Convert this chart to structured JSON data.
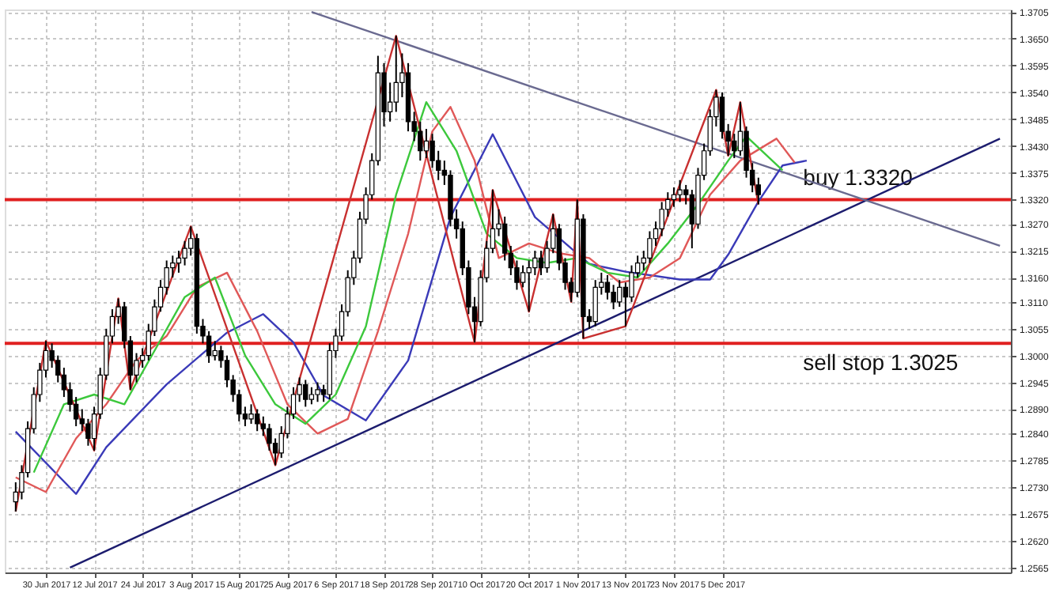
{
  "chart_data": {
    "type": "candlestick",
    "categories": [
      null,
      null,
      null,
      null,
      null,
      "30 Jun 2017",
      null,
      null,
      null,
      null,
      null,
      null,
      null,
      "12 Jul 2017",
      null,
      null,
      null,
      null,
      null,
      null,
      null,
      "24 Jul 2017",
      null,
      null,
      null,
      null,
      null,
      null,
      null,
      "3 Aug 2017",
      null,
      null,
      null,
      null,
      null,
      null,
      null,
      "15 Aug 2017",
      null,
      null,
      null,
      null,
      null,
      null,
      null,
      "25 Aug 2017",
      null,
      null,
      null,
      null,
      null,
      null,
      null,
      "6 Sep 2017",
      null,
      null,
      null,
      null,
      null,
      null,
      null,
      "18 Sep 2017",
      null,
      null,
      null,
      null,
      null,
      null,
      null,
      "28 Sep 2017",
      null,
      null,
      null,
      null,
      null,
      null,
      null,
      "10 Oct 2017",
      null,
      null,
      null,
      null,
      null,
      null,
      null,
      "20 Oct 2017",
      null,
      null,
      null,
      null,
      null,
      null,
      null,
      "1 Nov 2017",
      null,
      null,
      null,
      null,
      null,
      null,
      null,
      "13 Nov 2017",
      null,
      null,
      null,
      null,
      null,
      null,
      null,
      "23 Nov 2017",
      null,
      null,
      null,
      null,
      null,
      null,
      null,
      "5 Dec 2017",
      null,
      null,
      null,
      null,
      null,
      null,
      null,
      null,
      null,
      null,
      null,
      null,
      null,
      null,
      null,
      null,
      null,
      null,
      null,
      null,
      null,
      null,
      null,
      null,
      null,
      null,
      null,
      null,
      null,
      null,
      null,
      null,
      null,
      null,
      null,
      null,
      null,
      null,
      null,
      null,
      null,
      null,
      null,
      null,
      null,
      null
    ],
    "ohlc": [
      [
        1.27,
        1.274,
        1.268,
        1.272
      ],
      [
        1.272,
        1.2775,
        1.2705,
        1.276
      ],
      [
        1.276,
        1.2865,
        1.275,
        1.285
      ],
      [
        1.285,
        1.2935,
        1.284,
        1.292
      ],
      [
        1.292,
        1.2985,
        1.2905,
        1.297
      ],
      [
        1.297,
        1.303,
        1.2955,
        1.301
      ],
      [
        1.301,
        1.3025,
        1.2975,
        1.299
      ],
      [
        1.299,
        1.3,
        1.2945,
        1.296
      ],
      [
        1.296,
        1.2975,
        1.2915,
        1.293
      ],
      [
        1.293,
        1.2945,
        1.2885,
        1.29
      ],
      [
        1.29,
        1.2915,
        1.2855,
        1.287
      ],
      [
        1.287,
        1.289,
        1.2845,
        1.286
      ],
      [
        1.286,
        1.287,
        1.2815,
        1.283
      ],
      [
        1.283,
        1.2895,
        1.2805,
        1.288
      ],
      [
        1.288,
        1.2975,
        1.287,
        1.296
      ],
      [
        1.296,
        1.3055,
        1.295,
        1.304
      ],
      [
        1.304,
        1.3095,
        1.3025,
        1.308
      ],
      [
        1.308,
        1.3117,
        1.3065,
        1.31
      ],
      [
        1.31,
        1.311,
        1.3015,
        1.303
      ],
      [
        1.303,
        1.304,
        1.293,
        1.296
      ],
      [
        1.296,
        1.3005,
        1.2945,
        1.299
      ],
      [
        1.299,
        1.3015,
        1.2975,
        1.3
      ],
      [
        1.3,
        1.3065,
        1.299,
        1.305
      ],
      [
        1.305,
        1.3115,
        1.304,
        1.31
      ],
      [
        1.31,
        1.3155,
        1.309,
        1.314
      ],
      [
        1.314,
        1.3195,
        1.3125,
        1.318
      ],
      [
        1.318,
        1.3205,
        1.316,
        1.319
      ],
      [
        1.319,
        1.3215,
        1.317,
        1.32
      ],
      [
        1.32,
        1.3235,
        1.3185,
        1.322
      ],
      [
        1.322,
        1.3265,
        1.3205,
        1.324
      ],
      [
        1.324,
        1.325,
        1.3045,
        1.306
      ],
      [
        1.306,
        1.3075,
        1.3025,
        1.304
      ],
      [
        1.304,
        1.305,
        1.2985,
        1.3
      ],
      [
        1.3,
        1.303,
        1.299,
        1.301
      ],
      [
        1.301,
        1.302,
        1.2975,
        1.299
      ],
      [
        1.299,
        1.3,
        1.2935,
        1.295
      ],
      [
        1.295,
        1.296,
        1.2905,
        1.292
      ],
      [
        1.292,
        1.293,
        1.2865,
        1.288
      ],
      [
        1.288,
        1.2895,
        1.2855,
        1.287
      ],
      [
        1.287,
        1.29,
        1.286,
        1.288
      ],
      [
        1.288,
        1.289,
        1.2845,
        1.286
      ],
      [
        1.286,
        1.2875,
        1.2835,
        1.285
      ],
      [
        1.285,
        1.286,
        1.2805,
        1.282
      ],
      [
        1.282,
        1.283,
        1.2775,
        1.28
      ],
      [
        1.28,
        1.2855,
        1.279,
        1.284
      ],
      [
        1.284,
        1.2895,
        1.283,
        1.288
      ],
      [
        1.288,
        1.2935,
        1.287,
        1.292
      ],
      [
        1.292,
        1.2955,
        1.2905,
        1.294
      ],
      [
        1.294,
        1.295,
        1.2895,
        1.291
      ],
      [
        1.291,
        1.2935,
        1.29,
        1.292
      ],
      [
        1.292,
        1.2945,
        1.2905,
        1.293
      ],
      [
        1.293,
        1.294,
        1.2905,
        1.292
      ],
      [
        1.292,
        1.3025,
        1.291,
        1.301
      ],
      [
        1.301,
        1.3055,
        1.2995,
        1.304
      ],
      [
        1.304,
        1.3105,
        1.303,
        1.309
      ],
      [
        1.309,
        1.3175,
        1.308,
        1.316
      ],
      [
        1.316,
        1.3215,
        1.3145,
        1.32
      ],
      [
        1.32,
        1.3295,
        1.319,
        1.328
      ],
      [
        1.328,
        1.3345,
        1.327,
        1.333
      ],
      [
        1.333,
        1.3415,
        1.332,
        1.34
      ],
      [
        1.34,
        1.3615,
        1.339,
        1.358
      ],
      [
        1.358,
        1.36,
        1.347,
        1.35
      ],
      [
        1.35,
        1.356,
        1.348,
        1.352
      ],
      [
        1.352,
        1.3656,
        1.35,
        1.356
      ],
      [
        1.356,
        1.362,
        1.353,
        1.358
      ],
      [
        1.358,
        1.36,
        1.346,
        1.348
      ],
      [
        1.348,
        1.35,
        1.344,
        1.346
      ],
      [
        1.346,
        1.348,
        1.34,
        1.342
      ],
      [
        1.342,
        1.3465,
        1.3405,
        1.344
      ],
      [
        1.344,
        1.3455,
        1.3385,
        1.34
      ],
      [
        1.34,
        1.342,
        1.336,
        1.338
      ],
      [
        1.338,
        1.34,
        1.335,
        1.337
      ],
      [
        1.337,
        1.338,
        1.3265,
        1.328
      ],
      [
        1.328,
        1.33,
        1.324,
        1.326
      ],
      [
        1.326,
        1.3275,
        1.3165,
        1.318
      ],
      [
        1.318,
        1.3195,
        1.3085,
        1.31
      ],
      [
        1.31,
        1.312,
        1.3027,
        1.307
      ],
      [
        1.307,
        1.3175,
        1.306,
        1.316
      ],
      [
        1.316,
        1.3235,
        1.315,
        1.322
      ],
      [
        1.322,
        1.334,
        1.321,
        1.326
      ],
      [
        1.326,
        1.33,
        1.3245,
        1.327
      ],
      [
        1.327,
        1.3285,
        1.3195,
        1.321
      ],
      [
        1.321,
        1.3225,
        1.3165,
        1.318
      ],
      [
        1.318,
        1.3195,
        1.3135,
        1.315
      ],
      [
        1.315,
        1.3185,
        1.314,
        1.317
      ],
      [
        1.317,
        1.3195,
        1.309,
        1.318
      ],
      [
        1.318,
        1.3215,
        1.3165,
        1.32
      ],
      [
        1.32,
        1.3215,
        1.3165,
        1.318
      ],
      [
        1.318,
        1.3235,
        1.317,
        1.322
      ],
      [
        1.322,
        1.329,
        1.321,
        1.326
      ],
      [
        1.326,
        1.327,
        1.3175,
        1.319
      ],
      [
        1.319,
        1.32,
        1.3135,
        1.315
      ],
      [
        1.315,
        1.316,
        1.311,
        1.313
      ],
      [
        1.313,
        1.332,
        1.312,
        1.328
      ],
      [
        1.328,
        1.329,
        1.3035,
        1.308
      ],
      [
        1.308,
        1.3095,
        1.3055,
        1.307
      ],
      [
        1.307,
        1.3155,
        1.306,
        1.314
      ],
      [
        1.314,
        1.317,
        1.3125,
        1.315
      ],
      [
        1.315,
        1.3165,
        1.3115,
        1.313
      ],
      [
        1.313,
        1.3145,
        1.3095,
        1.311
      ],
      [
        1.311,
        1.3155,
        1.31,
        1.314
      ],
      [
        1.314,
        1.315,
        1.306,
        1.312
      ],
      [
        1.312,
        1.3185,
        1.311,
        1.317
      ],
      [
        1.317,
        1.3205,
        1.316,
        1.319
      ],
      [
        1.319,
        1.3215,
        1.3175,
        1.32
      ],
      [
        1.32,
        1.3255,
        1.319,
        1.324
      ],
      [
        1.324,
        1.3275,
        1.3225,
        1.326
      ],
      [
        1.326,
        1.3315,
        1.3245,
        1.33
      ],
      [
        1.33,
        1.3335,
        1.3285,
        1.332
      ],
      [
        1.332,
        1.3345,
        1.3305,
        1.333
      ],
      [
        1.333,
        1.336,
        1.3315,
        1.334
      ],
      [
        1.334,
        1.335,
        1.331,
        1.333
      ],
      [
        1.333,
        1.334,
        1.322,
        1.327
      ],
      [
        1.327,
        1.3385,
        1.326,
        1.337
      ],
      [
        1.337,
        1.3435,
        1.336,
        1.342
      ],
      [
        1.342,
        1.3505,
        1.341,
        1.349
      ],
      [
        1.349,
        1.3545,
        1.347,
        1.353
      ],
      [
        1.353,
        1.354,
        1.3445,
        1.346
      ],
      [
        1.346,
        1.3475,
        1.341,
        1.344
      ],
      [
        1.344,
        1.3455,
        1.3405,
        1.342
      ],
      [
        1.342,
        1.352,
        1.341,
        1.346
      ],
      [
        1.346,
        1.347,
        1.3365,
        1.338
      ],
      [
        1.338,
        1.3395,
        1.3335,
        1.335
      ],
      [
        1.335,
        1.3365,
        1.331,
        1.333
      ],
      null,
      null,
      null,
      null,
      null,
      null,
      null,
      null,
      null,
      null,
      null,
      null,
      null,
      null,
      null,
      null,
      null,
      null,
      null,
      null,
      null,
      null,
      null,
      null,
      null,
      null,
      null,
      null,
      null,
      null,
      null,
      null,
      null,
      null,
      null,
      null,
      null,
      null,
      null,
      null
    ],
    "ylim": [
      1.2555,
      1.371
    ],
    "yticks": [
      1.3705,
      {
        "value": 1.365,
        "label": "1.3650"
      },
      1.3595,
      {
        "value": 1.354,
        "label": "1.3540"
      },
      1.3485,
      {
        "value": 1.343,
        "label": "1.3430"
      },
      1.3375,
      {
        "value": 1.332,
        "label": "1.3320"
      },
      {
        "value": 1.327,
        "label": "1.3270"
      },
      1.3215,
      {
        "value": 1.316,
        "label": "1.3160"
      },
      {
        "value": 1.311,
        "label": "1.3110"
      },
      1.3055,
      {
        "value": 1.3,
        "label": "1.3000"
      },
      1.2945,
      {
        "value": 1.289,
        "label": "1.2890"
      },
      {
        "value": 1.284,
        "label": "1.2840"
      },
      1.2785,
      {
        "value": 1.273,
        "label": "1.2730"
      },
      1.2675,
      {
        "value": 1.262,
        "label": "1.2620"
      },
      1.2565
    ],
    "grid": true,
    "series": [
      {
        "type": "line",
        "color": "#1c1c6e",
        "values": [
          null,
          null,
          null,
          null,
          null,
          null,
          null,
          null,
          null,
          1.2565,
          null,
          null,
          null,
          null,
          null,
          null,
          null,
          null,
          null,
          null,
          null,
          null,
          null,
          null,
          null,
          null,
          null,
          null,
          null,
          null,
          null,
          null,
          null,
          null,
          null,
          null,
          null,
          null,
          null,
          null,
          null,
          null,
          null,
          null,
          null,
          null,
          null,
          null,
          null,
          null,
          null,
          null,
          null,
          null,
          null,
          null,
          null,
          null,
          null,
          null,
          null,
          null,
          null,
          null,
          null,
          null,
          null,
          null,
          null,
          null,
          null,
          null,
          null,
          null,
          null,
          null,
          null,
          null,
          null,
          null,
          null,
          null,
          null,
          null,
          null,
          null,
          null,
          null,
          null,
          null,
          null,
          null,
          null,
          null,
          null,
          null,
          null,
          null,
          null,
          null,
          null,
          null,
          null,
          null,
          null,
          null,
          null,
          null,
          null,
          null,
          null,
          null,
          null,
          null,
          null,
          null,
          null,
          null,
          null,
          null,
          null,
          null,
          null,
          null,
          null,
          null,
          null,
          null,
          null,
          null,
          null,
          null,
          null,
          null,
          null,
          null,
          null,
          null,
          null,
          null,
          null,
          null,
          null,
          null,
          null,
          null,
          null,
          null,
          null,
          null,
          null,
          null,
          null,
          null,
          null,
          null,
          null,
          null,
          null,
          null,
          null,
          null,
          null,
          1.3445
        ]
      },
      {
        "type": "line",
        "color": "#6a6a90",
        "values": [
          null,
          null,
          null,
          null,
          null,
          null,
          null,
          null,
          null,
          null,
          null,
          null,
          null,
          null,
          null,
          null,
          null,
          null,
          null,
          null,
          null,
          null,
          null,
          null,
          null,
          null,
          null,
          null,
          null,
          null,
          null,
          null,
          null,
          null,
          null,
          null,
          null,
          null,
          null,
          null,
          null,
          null,
          null,
          null,
          null,
          null,
          null,
          null,
          null,
          1.3705,
          null,
          null,
          null,
          null,
          null,
          null,
          null,
          null,
          null,
          null,
          null,
          null,
          null,
          null,
          null,
          null,
          null,
          null,
          null,
          null,
          null,
          null,
          null,
          null,
          null,
          null,
          null,
          null,
          null,
          null,
          null,
          null,
          null,
          null,
          null,
          null,
          null,
          null,
          null,
          null,
          null,
          null,
          null,
          null,
          null,
          null,
          null,
          null,
          null,
          null,
          null,
          null,
          null,
          null,
          null,
          null,
          null,
          null,
          null,
          null,
          null,
          null,
          null,
          null,
          null,
          null,
          null,
          null,
          null,
          null,
          null,
          null,
          null,
          null,
          null,
          null,
          null,
          null,
          null,
          null,
          null,
          null,
          null,
          null,
          null,
          null,
          null,
          null,
          null,
          null,
          null,
          null,
          null,
          null,
          null,
          null,
          null,
          null,
          null,
          null,
          null,
          null,
          null,
          null,
          null,
          null,
          null,
          null,
          null,
          null,
          null,
          null,
          null,
          1.3225
        ]
      },
      {
        "type": "line",
        "color": "#3a3ab8",
        "values": [
          1.2844,
          null,
          null,
          null,
          null,
          null,
          null,
          null,
          null,
          null,
          1.2716,
          null,
          null,
          null,
          null,
          1.2812,
          null,
          null,
          null,
          null,
          null,
          null,
          null,
          null,
          null,
          1.2941,
          null,
          null,
          null,
          null,
          null,
          null,
          null,
          null,
          null,
          1.3047,
          null,
          null,
          null,
          null,
          null,
          1.3085,
          null,
          null,
          null,
          null,
          1.3027,
          null,
          null,
          null,
          null,
          1.2918,
          null,
          null,
          null,
          null,
          null,
          null,
          1.2867,
          null,
          null,
          null,
          null,
          null,
          null,
          1.299,
          null,
          null,
          null,
          null,
          null,
          null,
          1.3284,
          null,
          null,
          null,
          null,
          null,
          null,
          1.3454,
          null,
          null,
          null,
          null,
          null,
          null,
          1.3284,
          null,
          null,
          null,
          null,
          null,
          null,
          null,
          null,
          1.3188,
          null,
          null,
          null,
          null,
          null,
          1.3172,
          null,
          null,
          null,
          null,
          null,
          null,
          null,
          null,
          1.3156,
          null,
          null,
          null,
          null,
          1.3156,
          null,
          null,
          1.3207,
          null,
          null,
          null,
          null,
          1.3316,
          null,
          null,
          null,
          1.339,
          null,
          null,
          null,
          1.34,
          null,
          null,
          null,
          null,
          null,
          null,
          null,
          null,
          null,
          null,
          null,
          null,
          null,
          null,
          null,
          null,
          null,
          null,
          null,
          null,
          null,
          null,
          null,
          null,
          null,
          null,
          null,
          null,
          null,
          null,
          null,
          null
        ]
      },
      {
        "type": "line",
        "color": "#e05858",
        "values": [
          1.275,
          null,
          null,
          null,
          null,
          1.272,
          null,
          null,
          null,
          null,
          1.283,
          null,
          null,
          null,
          null,
          1.29,
          null,
          null,
          null,
          null,
          1.299,
          null,
          null,
          null,
          null,
          1.304,
          null,
          null,
          null,
          null,
          1.314,
          null,
          null,
          null,
          null,
          1.317,
          null,
          null,
          null,
          null,
          1.305,
          null,
          null,
          null,
          null,
          1.29,
          null,
          null,
          null,
          null,
          1.284,
          null,
          null,
          null,
          null,
          1.287,
          null,
          null,
          null,
          null,
          1.305,
          null,
          null,
          null,
          null,
          1.325,
          null,
          null,
          null,
          1.346,
          null,
          null,
          1.351,
          null,
          null,
          null,
          1.34,
          null,
          null,
          null,
          1.32,
          null,
          null,
          null,
          null,
          1.323,
          null,
          null,
          null,
          null,
          1.321,
          null,
          null,
          null,
          null,
          1.32,
          null,
          null,
          null,
          null,
          1.315,
          null,
          null,
          null,
          null,
          1.316,
          null,
          null,
          null,
          null,
          1.32,
          null,
          null,
          null,
          null,
          1.333,
          null,
          null,
          null,
          null,
          1.34,
          null,
          null,
          null,
          null,
          null,
          1.3445,
          null,
          null,
          1.3396,
          null,
          null,
          null,
          null,
          null,
          null,
          null,
          null,
          null,
          null,
          null,
          null,
          null,
          null,
          null,
          null,
          null,
          null,
          null,
          null,
          null,
          null,
          null,
          null,
          null,
          null,
          null,
          null,
          null,
          null,
          null,
          null,
          null,
          null
        ]
      },
      {
        "type": "line",
        "color": "#3cc83c",
        "values": [
          null,
          null,
          null,
          1.276,
          null,
          null,
          null,
          null,
          1.29,
          null,
          null,
          null,
          null,
          1.292,
          null,
          null,
          null,
          null,
          1.29,
          null,
          null,
          null,
          null,
          1.301,
          null,
          null,
          null,
          null,
          1.312,
          null,
          null,
          null,
          null,
          1.316,
          null,
          null,
          null,
          null,
          1.3,
          null,
          null,
          null,
          null,
          1.29,
          null,
          null,
          null,
          null,
          1.286,
          null,
          null,
          null,
          null,
          1.292,
          null,
          null,
          null,
          null,
          1.306,
          null,
          null,
          null,
          null,
          1.333,
          null,
          null,
          null,
          null,
          1.352,
          null,
          null,
          null,
          null,
          1.342,
          null,
          null,
          null,
          null,
          1.325,
          null,
          null,
          null,
          null,
          1.32,
          null,
          null,
          null,
          null,
          1.319,
          null,
          null,
          null,
          null,
          1.32,
          null,
          null,
          null,
          null,
          1.317,
          null,
          null,
          null,
          null,
          1.316,
          null,
          null,
          null,
          null,
          1.323,
          null,
          null,
          null,
          null,
          1.331,
          null,
          null,
          null,
          null,
          1.34,
          null,
          null,
          1.345,
          null,
          null,
          null,
          null,
          null,
          1.338,
          null,
          null,
          null,
          null,
          null,
          null,
          null,
          null,
          null,
          null,
          null,
          null,
          null,
          null,
          null,
          null,
          null,
          null,
          null,
          null,
          null,
          null,
          null,
          null,
          null,
          null,
          null,
          null,
          null,
          null,
          null,
          null,
          null,
          null,
          null,
          null
        ]
      },
      {
        "type": "line",
        "color": "#c83030",
        "values": [
          1.268,
          null,
          null,
          null,
          null,
          1.303,
          null,
          null,
          null,
          null,
          null,
          null,
          null,
          1.2805,
          null,
          null,
          null,
          1.3117,
          null,
          1.293,
          null,
          null,
          null,
          null,
          null,
          null,
          null,
          null,
          null,
          1.3265,
          null,
          null,
          null,
          null,
          null,
          null,
          null,
          null,
          null,
          null,
          null,
          null,
          null,
          1.2775,
          null,
          null,
          null,
          null,
          null,
          null,
          null,
          null,
          null,
          null,
          null,
          null,
          null,
          null,
          null,
          null,
          null,
          null,
          null,
          1.3656,
          null,
          null,
          null,
          null,
          null,
          null,
          null,
          null,
          null,
          null,
          null,
          null,
          1.3027,
          null,
          null,
          1.334,
          null,
          null,
          null,
          null,
          null,
          1.309,
          null,
          null,
          null,
          1.329,
          null,
          null,
          1.311,
          1.332,
          1.3035,
          null,
          null,
          null,
          null,
          null,
          null,
          1.306,
          null,
          null,
          null,
          null,
          null,
          null,
          null,
          null,
          null,
          null,
          null,
          null,
          null,
          null,
          1.3545,
          null,
          1.341,
          null,
          1.352,
          null,
          null,
          1.331,
          null,
          null,
          null,
          null,
          null,
          null,
          null,
          null,
          null,
          null,
          null,
          null,
          null,
          null,
          null,
          null,
          null,
          null,
          null,
          null,
          null,
          null,
          null,
          null,
          null,
          null,
          null,
          null,
          null,
          null,
          null,
          null,
          null,
          null,
          null,
          null,
          null,
          null,
          null,
          null
        ]
      }
    ],
    "ref_lines": [
      {
        "axis": "y",
        "value": 1.332,
        "label": "buy 1.3320",
        "color": "#e02020"
      },
      {
        "axis": "y",
        "value": 1.3025,
        "label": "sell stop 1.3025",
        "color": "#e02020"
      }
    ]
  }
}
